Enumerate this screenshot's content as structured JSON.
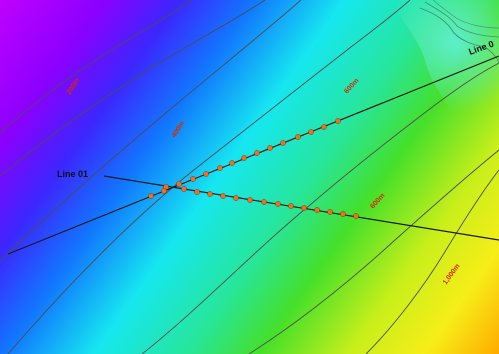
{
  "map": {
    "contour_labels": {
      "c200": "200m",
      "c400": "400m",
      "c600a": "600m",
      "c600b": "600m",
      "c1000": "1,000m"
    },
    "survey_lines": {
      "line01": "Line 01",
      "line02": "Line 0"
    },
    "colors": {
      "purple": "#a400ff",
      "blue": "#1e40ff",
      "cyan": "#16e7f0",
      "green": "#40e020",
      "yellow": "#f6ef16",
      "orange": "#ff9a00",
      "contour": "#4d4d4d",
      "survey_line": "#1a1a1a",
      "station_dot": "#ff6a12",
      "contour_label": "#d42a00"
    }
  }
}
